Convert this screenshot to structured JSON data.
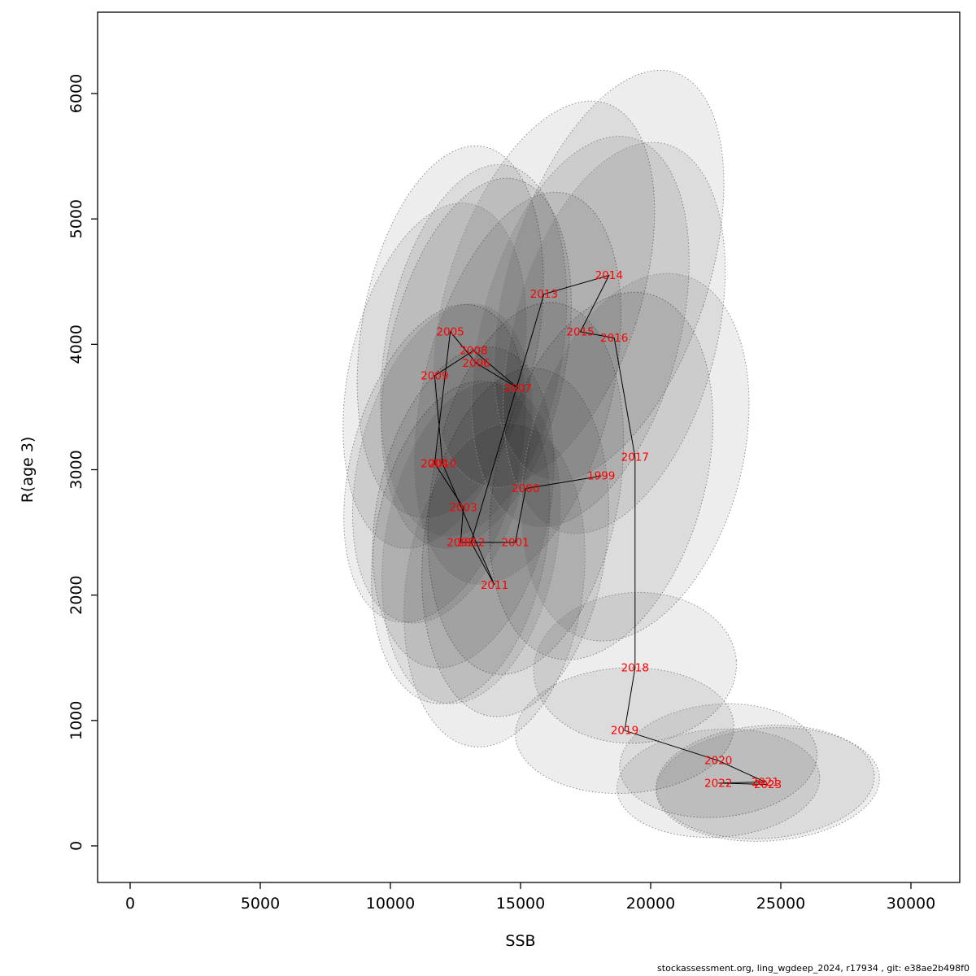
{
  "footer": {
    "credit": "stockassessment.org, ling_wgdeep_2024, r17934 , git: e38ae2b498f0"
  },
  "chart_data": {
    "type": "scatter",
    "title": "",
    "xlabel": "SSB",
    "ylabel": "R(age 3)",
    "xlim": [
      0,
      30000
    ],
    "ylim": [
      0,
      6000
    ],
    "x_ticks": [
      0,
      5000,
      10000,
      15000,
      20000,
      25000,
      30000
    ],
    "y_ticks": [
      0,
      1000,
      2000,
      3000,
      4000,
      5000,
      6000
    ],
    "grid": false,
    "legend": "none",
    "label_color": "#ff0000",
    "line_color": "#000000",
    "ellipse_fill": "#000000",
    "ellipse_fill_opacity": 0.07,
    "ellipse_stroke": "#8c8c8c",
    "points": [
      {
        "year": "1999",
        "ssb": 18100,
        "rec": 2950,
        "ellipse": {
          "rx": 4000,
          "ry": 1500,
          "rot": 15
        }
      },
      {
        "year": "2000",
        "ssb": 15200,
        "rec": 2850,
        "ellipse": {
          "rx": 3600,
          "ry": 1500,
          "rot": 10
        }
      },
      {
        "year": "2001",
        "ssb": 14800,
        "rec": 2420,
        "ellipse": {
          "rx": 3500,
          "ry": 1400,
          "rot": 8
        }
      },
      {
        "year": "2002",
        "ssb": 12700,
        "rec": 2420,
        "ellipse": {
          "rx": 3300,
          "ry": 1300,
          "rot": 10
        }
      },
      {
        "year": "2003",
        "ssb": 12800,
        "rec": 2700,
        "ellipse": {
          "rx": 3300,
          "ry": 1300,
          "rot": 12
        }
      },
      {
        "year": "2004",
        "ssb": 11700,
        "rec": 3050,
        "ellipse": {
          "rx": 3200,
          "ry": 1300,
          "rot": 15
        }
      },
      {
        "year": "2005",
        "ssb": 12300,
        "rec": 4100,
        "ellipse": {
          "rx": 3400,
          "ry": 1500,
          "rot": 10
        }
      },
      {
        "year": "2006",
        "ssb": 13300,
        "rec": 3850,
        "ellipse": {
          "rx": 3400,
          "ry": 1500,
          "rot": 12
        }
      },
      {
        "year": "2007",
        "ssb": 14900,
        "rec": 3650,
        "ellipse": {
          "rx": 3600,
          "ry": 1600,
          "rot": 14
        }
      },
      {
        "year": "2008",
        "ssb": 13200,
        "rec": 3950,
        "ellipse": {
          "rx": 3400,
          "ry": 1500,
          "rot": 10
        }
      },
      {
        "year": "2009",
        "ssb": 11700,
        "rec": 3750,
        "ellipse": {
          "rx": 3300,
          "ry": 1400,
          "rot": 12
        }
      },
      {
        "year": "2010",
        "ssb": 12000,
        "rec": 3050,
        "ellipse": {
          "rx": 3200,
          "ry": 1300,
          "rot": 14
        }
      },
      {
        "year": "2011",
        "ssb": 14000,
        "rec": 2080,
        "ellipse": {
          "rx": 3400,
          "ry": 1300,
          "rot": 8
        }
      },
      {
        "year": "2012",
        "ssb": 13100,
        "rec": 2420,
        "ellipse": {
          "rx": 3300,
          "ry": 1300,
          "rot": 10
        }
      },
      {
        "year": "2013",
        "ssb": 15900,
        "rec": 4400,
        "ellipse": {
          "rx": 3700,
          "ry": 1600,
          "rot": 18
        }
      },
      {
        "year": "2014",
        "ssb": 18400,
        "rec": 4550,
        "ellipse": {
          "rx": 3800,
          "ry": 1700,
          "rot": 18
        }
      },
      {
        "year": "2015",
        "ssb": 17300,
        "rec": 4100,
        "ellipse": {
          "rx": 3800,
          "ry": 1600,
          "rot": 15
        }
      },
      {
        "year": "2016",
        "ssb": 18600,
        "rec": 4050,
        "ellipse": {
          "rx": 3900,
          "ry": 1600,
          "rot": 15
        }
      },
      {
        "year": "2017",
        "ssb": 19400,
        "rec": 3100,
        "ellipse": {
          "rx": 4100,
          "ry": 1500,
          "rot": 15
        }
      },
      {
        "year": "2018",
        "ssb": 19400,
        "rec": 1420,
        "ellipse": {
          "rx": 3900,
          "ry": 600,
          "rot": -4
        }
      },
      {
        "year": "2019",
        "ssb": 19000,
        "rec": 920,
        "ellipse": {
          "rx": 4200,
          "ry": 500,
          "rot": -3
        }
      },
      {
        "year": "2020",
        "ssb": 22600,
        "rec": 680,
        "ellipse": {
          "rx": 3800,
          "ry": 450,
          "rot": -5
        }
      },
      {
        "year": "2021",
        "ssb": 24400,
        "rec": 510,
        "ellipse": {
          "rx": 4200,
          "ry": 450,
          "rot": -4
        }
      },
      {
        "year": "2022",
        "ssb": 22600,
        "rec": 500,
        "ellipse": {
          "rx": 3900,
          "ry": 430,
          "rot": -4
        }
      },
      {
        "year": "2023",
        "ssb": 24500,
        "rec": 490,
        "ellipse": {
          "rx": 4300,
          "ry": 450,
          "rot": -4
        }
      }
    ]
  }
}
